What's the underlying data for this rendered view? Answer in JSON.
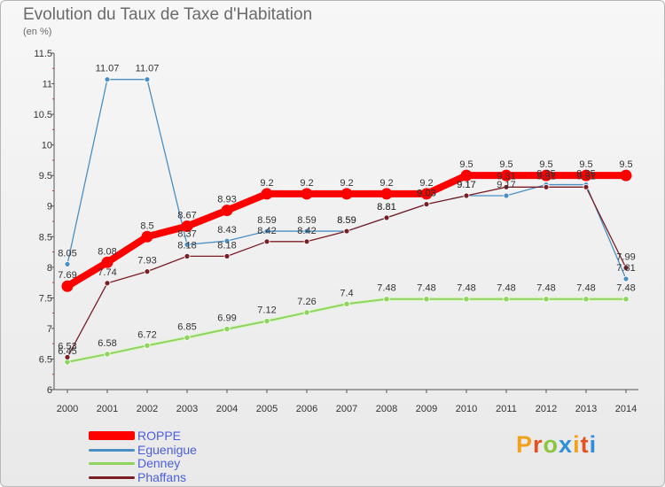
{
  "title": "Evolution du Taux de Taxe d'Habitation",
  "unit": "(en %)",
  "logo": {
    "text": "Proxiti",
    "colors": [
      "#f0a21c",
      "#e8501e",
      "#8cc63f",
      "#2f8fd8",
      "#f0a21c",
      "#e8501e",
      "#2f8fd8"
    ]
  },
  "chart_data": {
    "type": "line",
    "x": [
      "2000",
      "2001",
      "2002",
      "2003",
      "2004",
      "2005",
      "2006",
      "2007",
      "2008",
      "2009",
      "2010",
      "2011",
      "2012",
      "2013",
      "2014"
    ],
    "ylim": [
      6,
      11.5
    ],
    "yticks": [
      "6",
      "6.5",
      "7",
      "7.5",
      "8",
      "8.5",
      "9",
      "9.5",
      "10",
      "10.5",
      "11",
      "11.5"
    ],
    "grid": false,
    "legend_position": "bottom-left",
    "series": [
      {
        "name": "ROPPE",
        "color": "#ff0000",
        "values": [
          7.69,
          8.08,
          8.5,
          8.67,
          8.93,
          9.2,
          9.2,
          9.2,
          9.2,
          9.2,
          9.5,
          9.5,
          9.5,
          9.5,
          9.5
        ],
        "labels": [
          "7.69",
          "8.08",
          "8.5",
          "8.67",
          "8.93",
          "9.2",
          "9.2",
          "9.2",
          "9.2",
          "9.2",
          "9.5",
          "9.5",
          "9.5",
          "9.5",
          "9.5"
        ]
      },
      {
        "name": "Eguenigue",
        "color": "#4a8fc4",
        "values": [
          8.05,
          11.07,
          11.07,
          8.37,
          8.43,
          8.59,
          8.59,
          8.59,
          8.81,
          9.03,
          9.17,
          9.17,
          9.35,
          9.35,
          7.81
        ],
        "labels": [
          "8.05",
          "11.07",
          "11.07",
          "8.37",
          "8.43",
          "8.59",
          "8.59",
          "8.59",
          "8.81",
          "9.03",
          "9.17",
          "9.17",
          "9.35",
          "9.35",
          "7.81"
        ]
      },
      {
        "name": "Denney",
        "color": "#8fd45e",
        "values": [
          6.45,
          6.58,
          6.72,
          6.85,
          6.99,
          7.12,
          7.26,
          7.4,
          7.48,
          7.48,
          7.48,
          7.48,
          7.48,
          7.48,
          7.48
        ],
        "labels": [
          "6.45",
          "6.58",
          "6.72",
          "6.85",
          "6.99",
          "7.12",
          "7.26",
          "7.4",
          "7.48",
          "7.48",
          "7.48",
          "7.48",
          "7.48",
          "7.48",
          "7.48"
        ]
      },
      {
        "name": "Phaffans",
        "color": "#7a1e26",
        "values": [
          6.53,
          7.74,
          7.93,
          8.18,
          8.18,
          8.42,
          8.42,
          8.59,
          8.81,
          9.03,
          9.17,
          9.31,
          9.31,
          9.31,
          7.99
        ],
        "labels": [
          "6.53",
          "7.74",
          "7.93",
          "8.18",
          "8.18",
          "8.42",
          "8.42",
          "8.59",
          "8.81",
          "9.03",
          "9.17",
          "9.31",
          "9.31",
          "9.31",
          "7.99"
        ]
      }
    ]
  }
}
